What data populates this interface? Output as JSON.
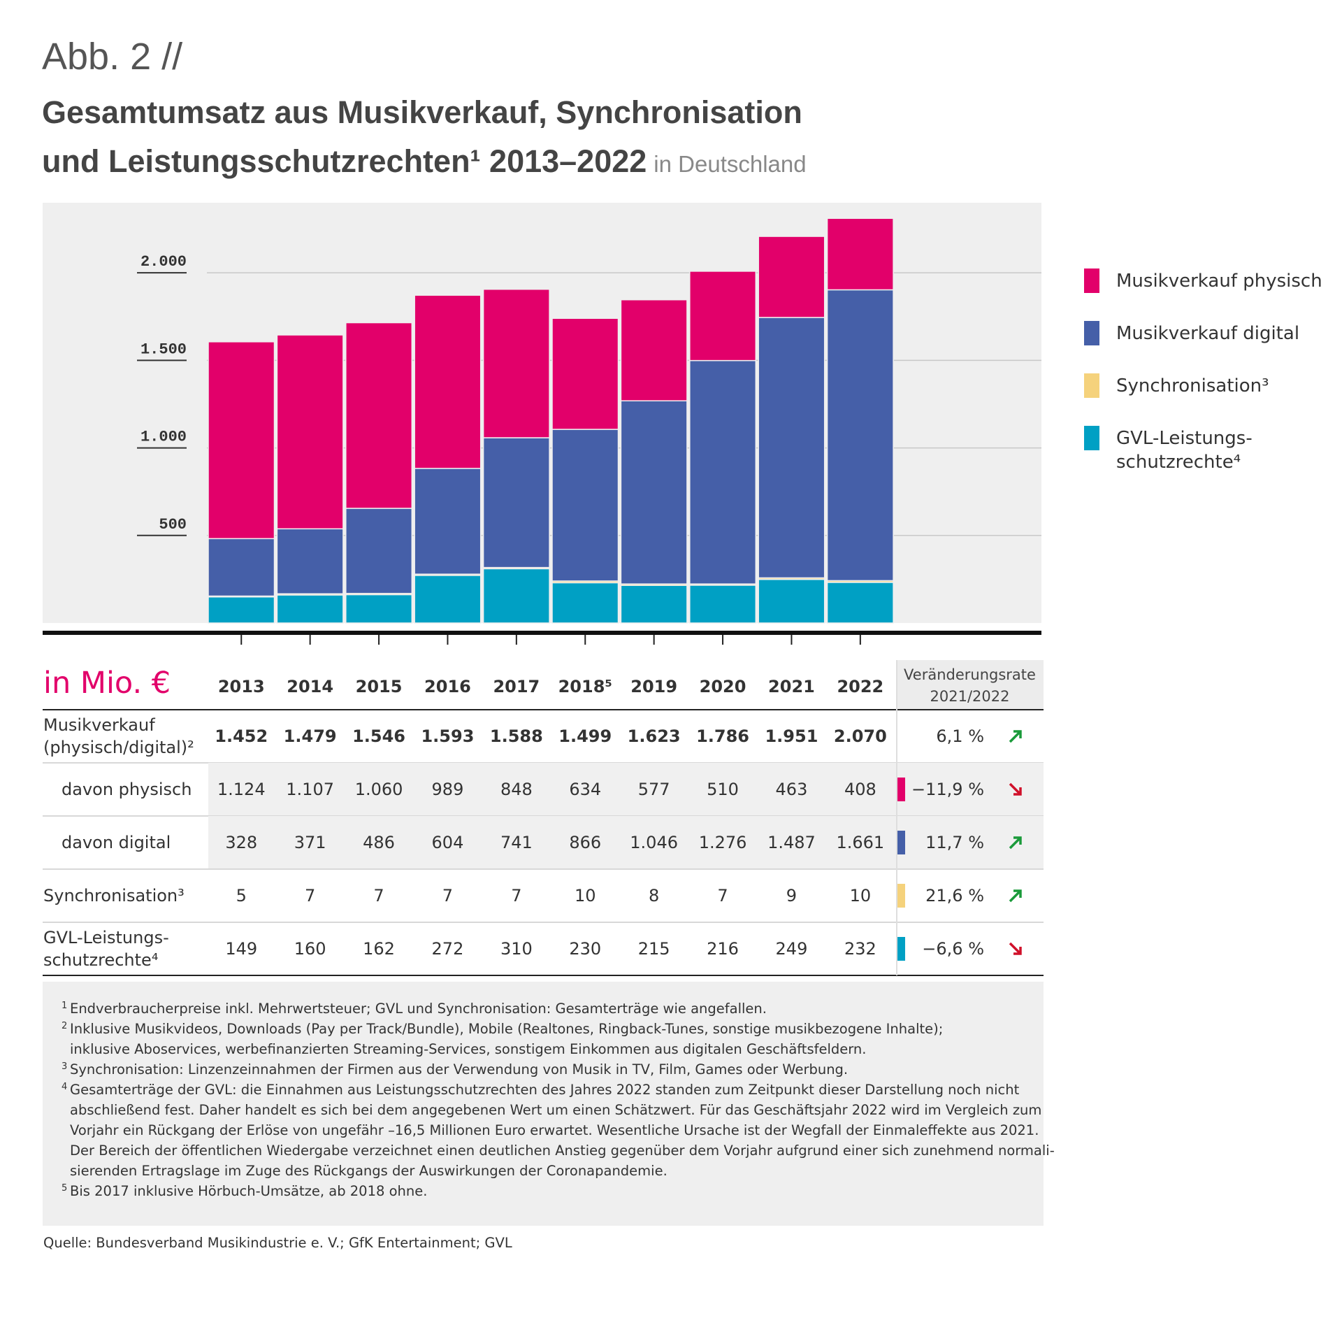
{
  "figure_label": "Abb. 2 //",
  "chart_data": {
    "type": "stacked_bar",
    "title": "Gesamtumsatz aus Musikverkauf, Synchronisation\nund Leistungsschutzrechten¹ 2013–2022",
    "subtitle": "in Deutschland",
    "categories": [
      "2013",
      "2014",
      "2015",
      "2016",
      "2017",
      "2018⁵",
      "2019",
      "2020",
      "2021",
      "2022"
    ],
    "series": [
      {
        "name": "Musikverkauf physisch",
        "color": "#e2006a",
        "values": [
          1124,
          1107,
          1060,
          989,
          848,
          634,
          577,
          510,
          463,
          408
        ]
      },
      {
        "name": "Musikverkauf digital",
        "color": "#455fa8",
        "values": [
          328,
          371,
          486,
          604,
          741,
          866,
          1046,
          1276,
          1487,
          1661
        ]
      },
      {
        "name": "Synchronisation³",
        "color": "#f5d27c",
        "values": [
          5,
          7,
          7,
          7,
          7,
          10,
          8,
          7,
          9,
          10
        ]
      },
      {
        "name": "GVL-Leistungs-\nschutzrechte⁴",
        "color": "#00a0c4",
        "values": [
          149,
          160,
          162,
          272,
          310,
          230,
          215,
          216,
          249,
          232
        ]
      }
    ],
    "ylim": [
      0,
      2400
    ],
    "yticks": [
      {
        "value": 500,
        "label": "500"
      },
      {
        "value": 1000,
        "label": "1.000"
      },
      {
        "value": 1500,
        "label": "1.500"
      },
      {
        "value": 2000,
        "label": "2.000"
      }
    ],
    "grid": true,
    "legend": "right"
  },
  "table": {
    "unit_label": "in Mio. €",
    "change_header": "Veränderungsrate\n2021/2022",
    "rows": [
      {
        "label": "Musikverkauf\n(physisch/digital)²",
        "values": [
          "1.452",
          "1.479",
          "1.546",
          "1.593",
          "1.588",
          "1.499",
          "1.623",
          "1.786",
          "1.951",
          "2.070"
        ],
        "change": "6,1 %",
        "trend": "up",
        "bold": true
      },
      {
        "label": "davon physisch",
        "values": [
          "1.124",
          "1.107",
          "1.060",
          "989",
          "848",
          "634",
          "577",
          "510",
          "463",
          "408"
        ],
        "change": "−11,9 %",
        "trend": "down",
        "indent": true,
        "shaded": true,
        "color": "#e2006a"
      },
      {
        "label": "davon digital",
        "values": [
          "328",
          "371",
          "486",
          "604",
          "741",
          "866",
          "1.046",
          "1.276",
          "1.487",
          "1.661"
        ],
        "change": "11,7 %",
        "trend": "up",
        "indent": true,
        "shaded": true,
        "color": "#455fa8"
      },
      {
        "label": "Synchronisation³",
        "values": [
          "5",
          "7",
          "7",
          "7",
          "7",
          "10",
          "8",
          "7",
          "9",
          "10"
        ],
        "change": "21,6 %",
        "trend": "up",
        "color": "#f5d27c"
      },
      {
        "label": "GVL-Leistungs-\nschutzrechte⁴",
        "values": [
          "149",
          "160",
          "162",
          "272",
          "310",
          "230",
          "215",
          "216",
          "249",
          "232"
        ],
        "change": "−6,6 %",
        "trend": "down",
        "color": "#00a0c4"
      }
    ]
  },
  "footnotes": [
    {
      "mark": "1",
      "lines": [
        "Endverbraucherpreise inkl. Mehrwertsteuer; GVL und Synchronisation: Gesamterträge wie angefallen."
      ]
    },
    {
      "mark": "2",
      "lines": [
        "Inklusive Musikvideos, Downloads (Pay per Track/Bundle), Mobile (Realtones, Ringback-Tunes, sonstige musikbezogene Inhalte);",
        "inklusive Aboservices, werbefinanzierten Streaming-Services, sonstigem Einkommen aus digitalen Geschäftsfeldern."
      ]
    },
    {
      "mark": "3",
      "lines": [
        "Synchronisation: Linzenzeinnahmen der Firmen aus der Verwendung von Musik in TV, Film, Games oder Werbung."
      ]
    },
    {
      "mark": "4",
      "lines": [
        "Gesamterträge der GVL: die Einnahmen aus Leistungsschutzrechten des Jahres 2022 standen zum Zeitpunkt dieser Darstellung noch nicht",
        "abschließend fest. Daher handelt es sich bei dem angegebenen Wert um einen Schätzwert. Für das Geschäftsjahr 2022 wird im Vergleich zum",
        "Vorjahr ein Rückgang der Erlöse von ungefähr –16,5 Millionen Euro erwartet. Wesentliche Ursache ist der Wegfall der Einmaleffekte aus 2021.",
        "Der Bereich der öffentlichen Wiedergabe verzeichnet einen deutlichen Anstieg gegenüber dem Vorjahr aufgrund einer sich zunehmend normali-",
        "sierenden Ertragslage im Zuge des Rückgangs der Auswirkungen der Coronapandemie."
      ]
    },
    {
      "mark": "5",
      "lines": [
        "Bis 2017 inklusive Hörbuch-Umsätze, ab 2018 ohne."
      ]
    }
  ],
  "source": "Quelle: Bundesverband Musikindustrie e. V.; GfK Entertainment; GVL"
}
